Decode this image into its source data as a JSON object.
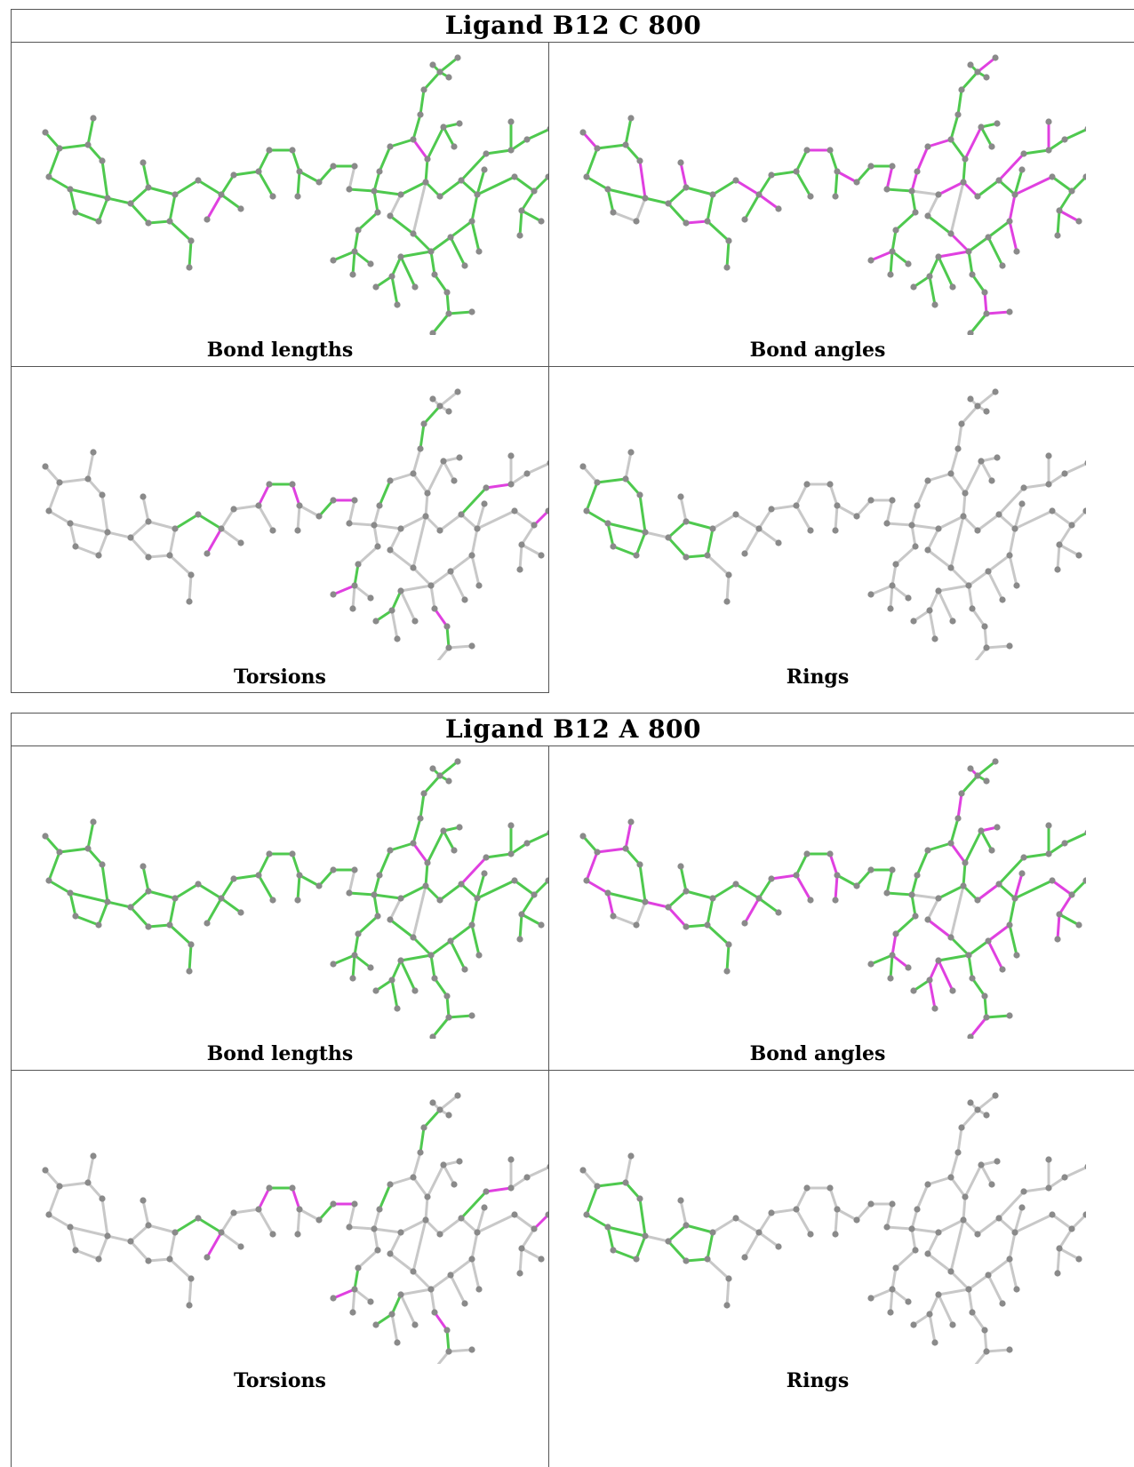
{
  "blocks": [
    {
      "title": "Ligand B12 C 800",
      "panels": [
        {
          "caption": "Bond lengths",
          "scheme": "lengths",
          "variant": "C"
        },
        {
          "caption": "Bond angles",
          "scheme": "angles",
          "variant": "C"
        },
        {
          "caption": "Torsions",
          "scheme": "torsions",
          "variant": "C"
        },
        {
          "caption": "Rings",
          "scheme": "rings",
          "variant": "C"
        }
      ]
    },
    {
      "title": "Ligand B12 A 800",
      "panels": [
        {
          "caption": "Bond lengths",
          "scheme": "lengths",
          "variant": "A"
        },
        {
          "caption": "Bond angles",
          "scheme": "angles",
          "variant": "A"
        },
        {
          "caption": "Torsions",
          "scheme": "torsions",
          "variant": "A"
        },
        {
          "caption": "Rings",
          "scheme": "rings",
          "variant": "A"
        }
      ]
    }
  ],
  "colors": {
    "good_bond": "#4ec94e",
    "outlier_bond": "#e040e0",
    "unassessed_bond": "#c8c8c8",
    "atom": "#8a8a8a"
  }
}
